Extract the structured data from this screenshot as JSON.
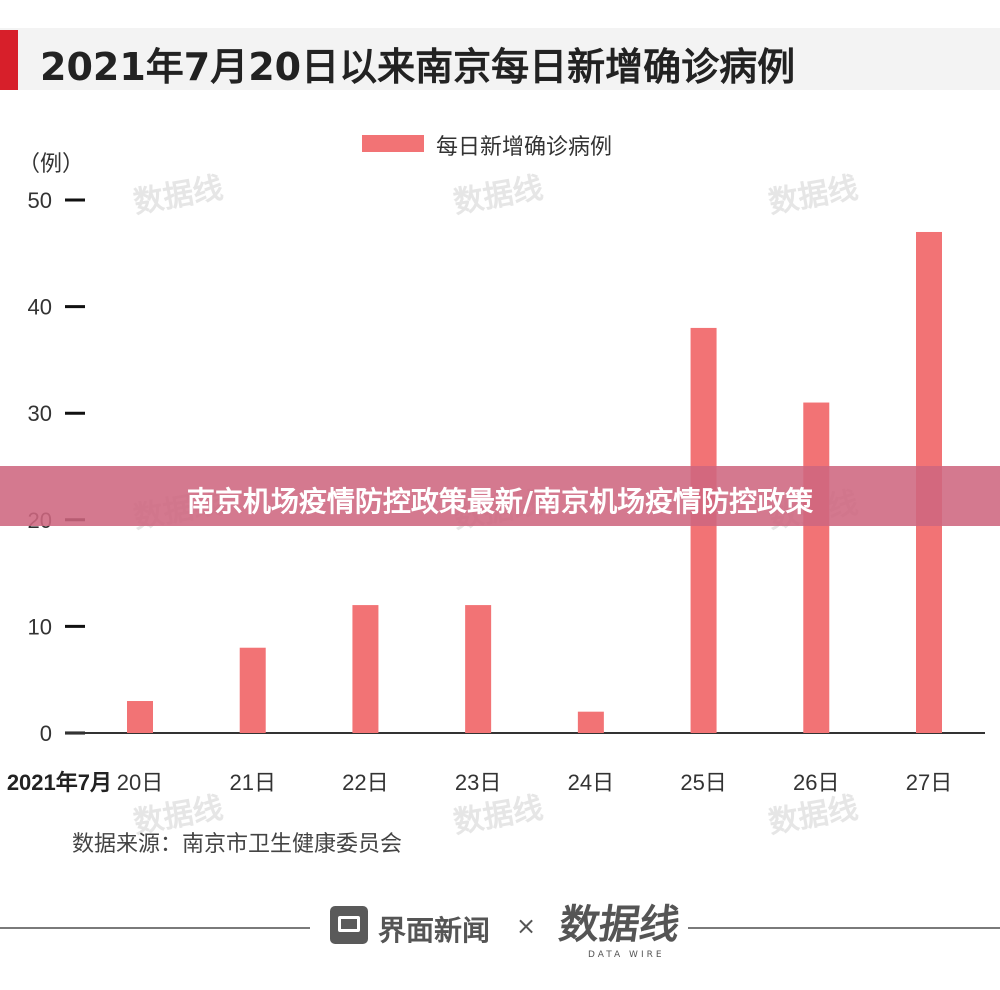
{
  "page": {
    "title": "2021年7月20日以来南京每日新增确诊病例",
    "unit_label": "（例）",
    "source": "数据来源：南京市卫生健康委员会",
    "brand_name": "界面新闻",
    "brand_separator": "×",
    "partner_name": "数据线",
    "partner_sub": "DATA WIRE",
    "banner_text": "南京机场疫情防控政策最新/南京机场疫情防控政策",
    "watermark_text": "数据线"
  },
  "colors": {
    "accent": "#d71f2a",
    "bar": "#f27375",
    "banner": "#ce6680"
  },
  "chart_data": {
    "type": "bar",
    "title": "2021年7月20日以来南京每日新增确诊病例",
    "xlabel": "",
    "ylabel": "（例）",
    "legend": "每日新增确诊病例",
    "legend_position": "top-center",
    "grid": false,
    "ylim": [
      0,
      50
    ],
    "yticks": [
      0,
      10,
      20,
      30,
      40,
      50
    ],
    "categories": [
      "20日",
      "21日",
      "22日",
      "23日",
      "24日",
      "25日",
      "26日",
      "27日"
    ],
    "first_category_prefix": "2021年7月",
    "series": [
      {
        "name": "每日新增确诊病例",
        "values": [
          3,
          8,
          12,
          12,
          2,
          38,
          31,
          47
        ]
      }
    ]
  }
}
